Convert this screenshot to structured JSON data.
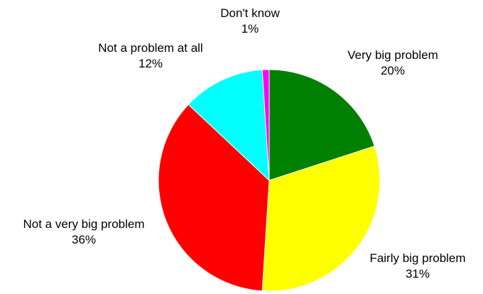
{
  "chart_data": {
    "type": "pie",
    "title": "",
    "start_angle_deg": 0,
    "direction": "clockwise",
    "slices": [
      {
        "label": "Very big problem",
        "value": 20,
        "value_label": "20%",
        "color": "#008000"
      },
      {
        "label": "Fairly big problem",
        "value": 31,
        "value_label": "31%",
        "color": "#FFFF00"
      },
      {
        "label": "Not a very big problem",
        "value": 36,
        "value_label": "36%",
        "color": "#FF0000"
      },
      {
        "label": "Not a problem at all",
        "value": 12,
        "value_label": "12%",
        "color": "#00FFFF"
      },
      {
        "label": "Don't know",
        "value": 1,
        "value_label": "1%",
        "color": "#FF00FF"
      }
    ]
  }
}
